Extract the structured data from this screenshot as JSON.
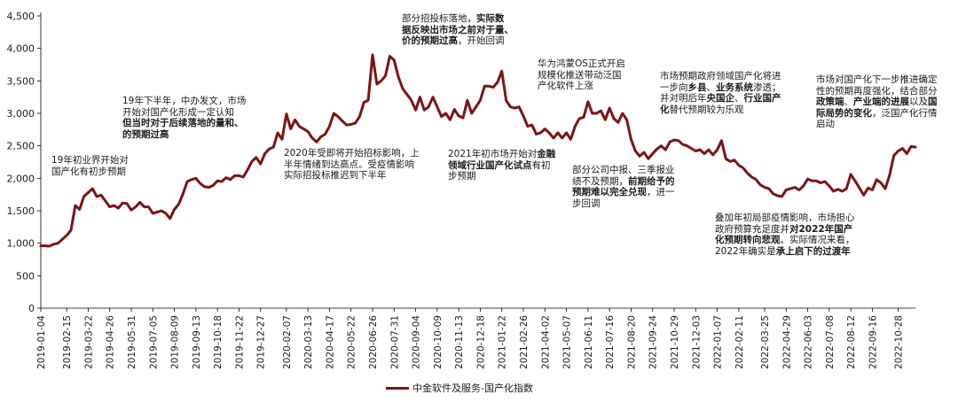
{
  "chart_data": {
    "type": "line",
    "series": [
      {
        "name": "中金软件及服务-国产化指数",
        "color": "#7b1416",
        "points": [
          [
            "2019-01-04",
            960
          ],
          [
            "2019-01-11",
            960
          ],
          [
            "2019-01-18",
            955
          ],
          [
            "2019-01-25",
            985
          ],
          [
            "2019-02-01",
            1000
          ],
          [
            "2019-02-15",
            1120
          ],
          [
            "2019-02-22",
            1200
          ],
          [
            "2019-03-01",
            1580
          ],
          [
            "2019-03-08",
            1520
          ],
          [
            "2019-03-15",
            1720
          ],
          [
            "2019-03-22",
            1780
          ],
          [
            "2019-03-29",
            1840
          ],
          [
            "2019-04-05",
            1720
          ],
          [
            "2019-04-12",
            1740
          ],
          [
            "2019-04-19",
            1650
          ],
          [
            "2019-04-26",
            1560
          ],
          [
            "2019-05-03",
            1580
          ],
          [
            "2019-05-10",
            1540
          ],
          [
            "2019-05-17",
            1620
          ],
          [
            "2019-05-24",
            1610
          ],
          [
            "2019-05-31",
            1510
          ],
          [
            "2019-06-07",
            1560
          ],
          [
            "2019-06-14",
            1630
          ],
          [
            "2019-06-21",
            1560
          ],
          [
            "2019-06-28",
            1560
          ],
          [
            "2019-07-05",
            1460
          ],
          [
            "2019-07-12",
            1480
          ],
          [
            "2019-07-19",
            1500
          ],
          [
            "2019-07-26",
            1460
          ],
          [
            "2019-08-02",
            1380
          ],
          [
            "2019-08-09",
            1520
          ],
          [
            "2019-08-16",
            1600
          ],
          [
            "2019-08-23",
            1760
          ],
          [
            "2019-08-30",
            1950
          ],
          [
            "2019-09-06",
            1980
          ],
          [
            "2019-09-13",
            2000
          ],
          [
            "2019-09-20",
            1920
          ],
          [
            "2019-09-27",
            1870
          ],
          [
            "2019-10-04",
            1860
          ],
          [
            "2019-10-11",
            1890
          ],
          [
            "2019-10-18",
            1960
          ],
          [
            "2019-10-25",
            1950
          ],
          [
            "2019-11-01",
            2010
          ],
          [
            "2019-11-08",
            1980
          ],
          [
            "2019-11-15",
            2040
          ],
          [
            "2019-11-22",
            2040
          ],
          [
            "2019-11-29",
            2020
          ],
          [
            "2019-12-06",
            2130
          ],
          [
            "2019-12-13",
            2260
          ],
          [
            "2019-12-20",
            2320
          ],
          [
            "2019-12-27",
            2220
          ],
          [
            "2020-01-03",
            2380
          ],
          [
            "2020-01-10",
            2450
          ],
          [
            "2020-01-17",
            2480
          ],
          [
            "2020-01-24",
            2700
          ],
          [
            "2020-01-31",
            2600
          ],
          [
            "2020-02-07",
            2990
          ],
          [
            "2020-02-14",
            2760
          ],
          [
            "2020-02-21",
            2900
          ],
          [
            "2020-02-28",
            2800
          ],
          [
            "2020-03-06",
            2760
          ],
          [
            "2020-03-13",
            2720
          ],
          [
            "2020-03-20",
            2620
          ],
          [
            "2020-03-27",
            2560
          ],
          [
            "2020-04-03",
            2640
          ],
          [
            "2020-04-10",
            2680
          ],
          [
            "2020-04-17",
            2800
          ],
          [
            "2020-04-24",
            3000
          ],
          [
            "2020-05-01",
            2950
          ],
          [
            "2020-05-08",
            2880
          ],
          [
            "2020-05-15",
            2820
          ],
          [
            "2020-05-22",
            2830
          ],
          [
            "2020-05-29",
            2850
          ],
          [
            "2020-06-05",
            2950
          ],
          [
            "2020-06-12",
            3170
          ],
          [
            "2020-06-19",
            3200
          ],
          [
            "2020-06-26",
            3900
          ],
          [
            "2020-07-03",
            3450
          ],
          [
            "2020-07-10",
            3500
          ],
          [
            "2020-07-17",
            3580
          ],
          [
            "2020-07-24",
            3880
          ],
          [
            "2020-07-31",
            3820
          ],
          [
            "2020-08-07",
            3560
          ],
          [
            "2020-08-14",
            3380
          ],
          [
            "2020-08-21",
            3290
          ],
          [
            "2020-08-28",
            3200
          ],
          [
            "2020-09-04",
            3050
          ],
          [
            "2020-09-11",
            3250
          ],
          [
            "2020-09-18",
            3050
          ],
          [
            "2020-09-25",
            3100
          ],
          [
            "2020-10-02",
            3250
          ],
          [
            "2020-10-09",
            3100
          ],
          [
            "2020-10-16",
            2950
          ],
          [
            "2020-10-23",
            3000
          ],
          [
            "2020-10-30",
            2900
          ],
          [
            "2020-11-06",
            3060
          ],
          [
            "2020-11-13",
            2960
          ],
          [
            "2020-11-20",
            2930
          ],
          [
            "2020-11-27",
            3200
          ],
          [
            "2020-12-04",
            3000
          ],
          [
            "2020-12-11",
            3100
          ],
          [
            "2020-12-18",
            3200
          ],
          [
            "2020-12-25",
            3420
          ],
          [
            "2021-01-01",
            3420
          ],
          [
            "2021-01-08",
            3400
          ],
          [
            "2021-01-15",
            3480
          ],
          [
            "2021-01-22",
            3650
          ],
          [
            "2021-01-29",
            3200
          ],
          [
            "2021-02-05",
            3100
          ],
          [
            "2021-02-12",
            3080
          ],
          [
            "2021-02-19",
            3100
          ],
          [
            "2021-02-26",
            2960
          ],
          [
            "2021-03-05",
            2800
          ],
          [
            "2021-03-12",
            2820
          ],
          [
            "2021-03-19",
            2680
          ],
          [
            "2021-03-26",
            2700
          ],
          [
            "2021-04-02",
            2760
          ],
          [
            "2021-04-09",
            2700
          ],
          [
            "2021-04-16",
            2620
          ],
          [
            "2021-04-23",
            2700
          ],
          [
            "2021-04-30",
            2620
          ],
          [
            "2021-05-07",
            2700
          ],
          [
            "2021-05-14",
            2600
          ],
          [
            "2021-05-21",
            2800
          ],
          [
            "2021-05-28",
            2920
          ],
          [
            "2021-06-04",
            2940
          ],
          [
            "2021-06-11",
            3180
          ],
          [
            "2021-06-18",
            3000
          ],
          [
            "2021-06-25",
            3000
          ],
          [
            "2021-07-02",
            3040
          ],
          [
            "2021-07-09",
            2900
          ],
          [
            "2021-07-16",
            3080
          ],
          [
            "2021-07-23",
            2920
          ],
          [
            "2021-07-30",
            2860
          ],
          [
            "2021-08-06",
            3000
          ],
          [
            "2021-08-13",
            2900
          ],
          [
            "2021-08-20",
            2600
          ],
          [
            "2021-08-27",
            2420
          ],
          [
            "2021-09-03",
            2340
          ],
          [
            "2021-09-10",
            2400
          ],
          [
            "2021-09-17",
            2300
          ],
          [
            "2021-09-24",
            2380
          ],
          [
            "2021-10-01",
            2450
          ],
          [
            "2021-10-08",
            2500
          ],
          [
            "2021-10-15",
            2440
          ],
          [
            "2021-10-22",
            2560
          ],
          [
            "2021-10-29",
            2590
          ],
          [
            "2021-11-05",
            2580
          ],
          [
            "2021-11-12",
            2520
          ],
          [
            "2021-11-19",
            2500
          ],
          [
            "2021-11-26",
            2460
          ],
          [
            "2021-12-03",
            2420
          ],
          [
            "2021-12-10",
            2440
          ],
          [
            "2021-12-17",
            2380
          ],
          [
            "2021-12-24",
            2440
          ],
          [
            "2021-12-31",
            2360
          ],
          [
            "2022-01-07",
            2440
          ],
          [
            "2022-01-14",
            2580
          ],
          [
            "2022-01-21",
            2300
          ],
          [
            "2022-01-28",
            2260
          ],
          [
            "2022-02-04",
            2280
          ],
          [
            "2022-02-11",
            2200
          ],
          [
            "2022-02-18",
            2160
          ],
          [
            "2022-02-25",
            2080
          ],
          [
            "2022-03-04",
            2020
          ],
          [
            "2022-03-11",
            1980
          ],
          [
            "2022-03-18",
            1900
          ],
          [
            "2022-03-25",
            1860
          ],
          [
            "2022-04-01",
            1840
          ],
          [
            "2022-04-08",
            1760
          ],
          [
            "2022-04-15",
            1730
          ],
          [
            "2022-04-22",
            1720
          ],
          [
            "2022-04-29",
            1820
          ],
          [
            "2022-05-06",
            1840
          ],
          [
            "2022-05-13",
            1860
          ],
          [
            "2022-05-20",
            1820
          ],
          [
            "2022-05-27",
            1880
          ],
          [
            "2022-06-03",
            1990
          ],
          [
            "2022-06-10",
            1960
          ],
          [
            "2022-06-17",
            1960
          ],
          [
            "2022-06-24",
            1930
          ],
          [
            "2022-07-01",
            1950
          ],
          [
            "2022-07-08",
            1880
          ],
          [
            "2022-07-15",
            1800
          ],
          [
            "2022-07-22",
            1830
          ],
          [
            "2022-07-29",
            1800
          ],
          [
            "2022-08-05",
            1840
          ],
          [
            "2022-08-12",
            2060
          ],
          [
            "2022-08-19",
            1960
          ],
          [
            "2022-08-26",
            1850
          ],
          [
            "2022-09-02",
            1740
          ],
          [
            "2022-09-09",
            1850
          ],
          [
            "2022-09-16",
            1820
          ],
          [
            "2022-09-23",
            1980
          ],
          [
            "2022-09-30",
            1930
          ],
          [
            "2022-10-07",
            1840
          ],
          [
            "2022-10-14",
            2050
          ],
          [
            "2022-10-21",
            2350
          ],
          [
            "2022-10-28",
            2420
          ],
          [
            "2022-11-04",
            2460
          ],
          [
            "2022-11-11",
            2380
          ],
          [
            "2022-11-18",
            2490
          ],
          [
            "2022-11-25",
            2480
          ]
        ]
      }
    ],
    "x_range": [
      "2019-01-04",
      "2022-11-25"
    ],
    "x_tick_labels": [
      "2019-01-04",
      "2019-02-15",
      "2019-03-22",
      "2019-04-26",
      "2019-05-31",
      "2019-07-05",
      "2019-08-09",
      "2019-09-13",
      "2019-10-18",
      "2019-11-22",
      "2019-12-27",
      "2020-02-07",
      "2020-03-13",
      "2020-04-17",
      "2020-05-22",
      "2020-06-26",
      "2020-07-31",
      "2020-09-04",
      "2020-10-09",
      "2020-11-13",
      "2020-12-18",
      "2021-01-22",
      "2021-02-26",
      "2021-04-02",
      "2021-05-07",
      "2021-06-11",
      "2021-07-16",
      "2021-08-20",
      "2021-09-24",
      "2021-10-29",
      "2021-12-03",
      "2022-01-07",
      "2022-02-11",
      "2022-03-25",
      "2022-04-29",
      "2022-06-03",
      "2022-07-08",
      "2022-08-12",
      "2022-09-16",
      "2022-10-28"
    ],
    "y_ticks": [
      0,
      500,
      1000,
      1500,
      2000,
      2500,
      3000,
      3500,
      4000,
      4500
    ],
    "y_tick_labels": [
      "0",
      "500",
      "1,000",
      "1,500",
      "2,000",
      "2,500",
      "3,000",
      "3,500",
      "4,000",
      "4,500"
    ],
    "ylim": [
      0,
      4500
    ],
    "grid": false,
    "legend_position": "bottom-center",
    "title": "",
    "xlabel": "",
    "ylabel": ""
  },
  "annotations": [
    {
      "id": "a1",
      "lines": [
        [
          "19年初业界开始对"
        ],
        [
          "国产化有初步预期"
        ]
      ]
    },
    {
      "id": "a2",
      "lines": [
        [
          "19年下半年，中办发文，市场"
        ],
        [
          "开始对国产化形成一定认知"
        ],
        [
          {
            "b": "但当时对于后续落地的量和、"
          }
        ],
        [
          {
            "b": "的预期过高"
          }
        ]
      ]
    },
    {
      "id": "a3",
      "lines": [
        [
          "2020年受即将开始招标影响，上"
        ],
        [
          "半年情绪到达高点。受疫情影响"
        ],
        [
          "实际招投标推迟到下半年"
        ]
      ]
    },
    {
      "id": "a4",
      "lines": [
        [
          "部分招投标落地，",
          {
            "b": "实际数"
          }
        ],
        [
          {
            "b": "据反映出市场之前对于量、"
          }
        ],
        [
          {
            "b": "价的预期过高"
          },
          "，开始回调"
        ]
      ]
    },
    {
      "id": "a5",
      "lines": [
        [
          "2021年初市场开始对",
          {
            "b": "金融"
          }
        ],
        [
          {
            "b": "领域行业国产化试点"
          },
          "有初"
        ],
        [
          "步预期"
        ]
      ]
    },
    {
      "id": "a6",
      "lines": [
        [
          "华为鸿蒙OS正式开启"
        ],
        [
          "规模化推送带动泛国"
        ],
        [
          "产化软件上涨"
        ]
      ]
    },
    {
      "id": "a7",
      "lines": [
        [
          "部分公司中报、三季报业"
        ],
        [
          "绩不及预期，",
          {
            "b": "前期给予的"
          }
        ],
        [
          {
            "b": "预期难以完全兑现"
          },
          "，进一"
        ],
        [
          "步回调"
        ]
      ]
    },
    {
      "id": "a8",
      "lines": [
        [
          "市场预期政府领域国产化将进"
        ],
        [
          "一步向",
          {
            "b": "乡县"
          },
          "、",
          {
            "b": "业务系统"
          },
          "渗透；"
        ],
        [
          "并对明后年",
          {
            "b": "央国企"
          },
          "、",
          {
            "b": "行业国产"
          }
        ],
        [
          {
            "b": "化"
          },
          "替代预期较为乐观"
        ]
      ]
    },
    {
      "id": "a9",
      "lines": [
        [
          "叠加年初局部疫情影响，市场担心"
        ],
        [
          "政府预算充足度并",
          {
            "b": "对2022年国产"
          }
        ],
        [
          {
            "b": "化预期转向悲观"
          },
          "。实际情况来看，"
        ],
        [
          "2022年确实是",
          {
            "b": "承上启下的过渡年"
          }
        ]
      ]
    },
    {
      "id": "a10",
      "lines": [
        [
          "市场对国产化下一步推进确定"
        ],
        [
          "性的预期再度强化，结合部分"
        ],
        [
          {
            "b": "政策端"
          },
          "、",
          {
            "b": "产业端的进展"
          },
          "以及",
          {
            "b": "国"
          }
        ],
        [
          {
            "b": "际局势的变化"
          },
          "，泛国产化行情"
        ],
        [
          "启动"
        ]
      ]
    }
  ]
}
